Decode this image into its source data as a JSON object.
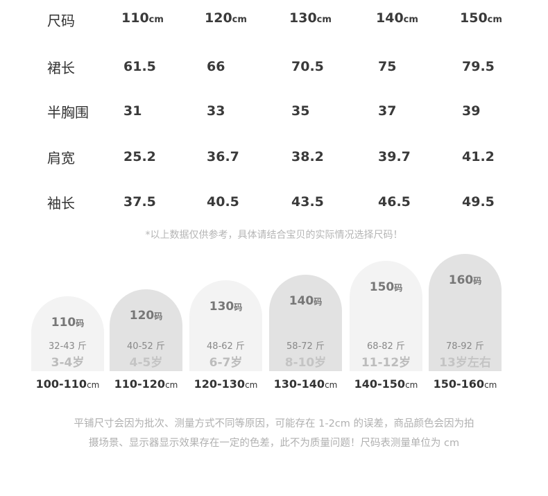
{
  "table": {
    "header": {
      "label": "尺码",
      "cells": [
        {
          "size": "110",
          "unit": "cm"
        },
        {
          "size": "120",
          "unit": "cm"
        },
        {
          "size": "130",
          "unit": "cm"
        },
        {
          "size": "140",
          "unit": "cm"
        },
        {
          "size": "150",
          "unit": "cm"
        }
      ]
    },
    "rows": [
      {
        "label": "裙长",
        "values": [
          61.5,
          66,
          70.5,
          75,
          79.5
        ]
      },
      {
        "label": "半胸围",
        "values": [
          31,
          33,
          35,
          37,
          39
        ]
      },
      {
        "label": "肩宽",
        "values": [
          25.2,
          36.7,
          38.2,
          39.7,
          41.2
        ]
      },
      {
        "label": "袖长",
        "values": [
          37.5,
          40.5,
          43.5,
          46.5,
          49.5
        ]
      }
    ]
  },
  "note": "*以上数据仅供参考，具体请结合宝贝的实际情况选择尺码！",
  "sizes": [
    {
      "size": "110",
      "unit": "码",
      "weight": "32-43 斤",
      "age": "3-4岁",
      "range": "100-110",
      "range_unit": "cm"
    },
    {
      "size": "120",
      "unit": "码",
      "weight": "40-52 斤",
      "age": "4-5岁",
      "range": "110-120",
      "range_unit": "cm"
    },
    {
      "size": "130",
      "unit": "码",
      "weight": "48-62 斤",
      "age": "6-7岁",
      "range": "120-130",
      "range_unit": "cm"
    },
    {
      "size": "140",
      "unit": "码",
      "weight": "58-72 斤",
      "age": "8-10岁",
      "range": "130-140",
      "range_unit": "cm"
    },
    {
      "size": "150",
      "unit": "码",
      "weight": "68-82 斤",
      "age": "11-12岁",
      "range": "140-150",
      "range_unit": "cm"
    },
    {
      "size": "160",
      "unit": "码",
      "weight": "78-92 斤",
      "age": "13岁左右",
      "range": "150-160",
      "range_unit": "cm"
    }
  ],
  "footer": [
    "平铺尺寸会因为批次、测量方式不同等原因，可能存在 1-2cm 的误差，商品颜色会因为拍",
    "摄场景、显示器显示效果存在一定的色差，此不为质量问题！尺码表测量单位为 cm"
  ]
}
